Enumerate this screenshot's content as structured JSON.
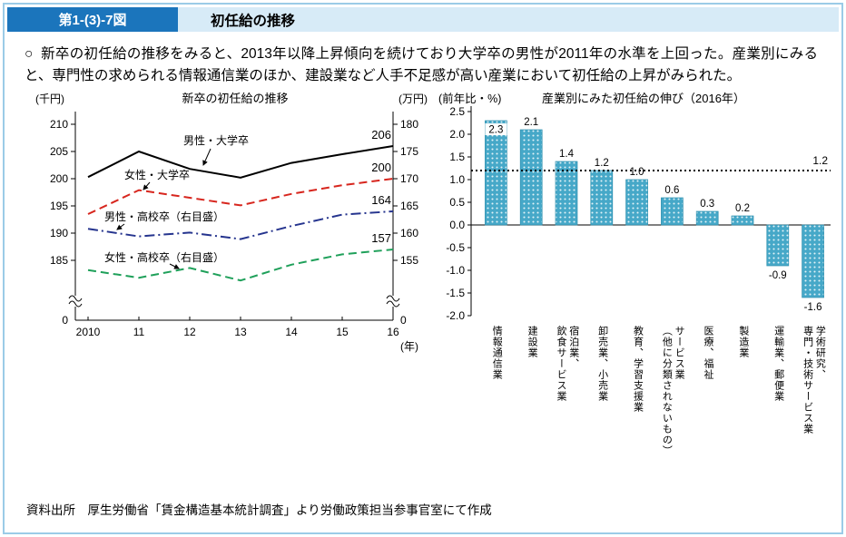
{
  "figure": {
    "number": "第1-(3)-7図",
    "title": "初任給の推移"
  },
  "summary": {
    "bullet": "○",
    "text": "新卒の初任給の推移をみると、2013年以降上昇傾向を続けており大学卒の男性が2011年の水準を上回った。産業別にみると、専門性の求められる情報通信業のほか、建設業など人手不足感が高い産業において初任給の上昇がみられた。"
  },
  "source": "資料出所　厚生労働省「賃金構造基本統計調査」より労働政策担当参事官室にて作成",
  "theme": {
    "header_number_bg": "#1b75bc",
    "header_title_bg": "#d7ebf7",
    "frame_border": "#9bcbe7",
    "bar_fill": "#46a8c8"
  },
  "chart_data": [
    {
      "type": "line",
      "title": "新卒の初任給の推移",
      "left_axis_unit": "(千円)",
      "right_axis_unit": "(万円)",
      "x_axis_unit": "(年)",
      "x_labels": [
        "2010",
        "11",
        "12",
        "13",
        "14",
        "15",
        "16"
      ],
      "left_ticks": [
        210,
        205,
        200,
        195,
        190,
        185
      ],
      "right_ticks": [
        180,
        175,
        170,
        165,
        160,
        155
      ],
      "axis_break": true,
      "zero_label": "0",
      "right_axis_offset": 30,
      "series": [
        {
          "name": "男性・大学卒",
          "axis": "left",
          "color": "#000000",
          "style": "solid",
          "values": [
            200.3,
            205.0,
            201.8,
            200.2,
            202.9,
            204.5,
            206.0
          ],
          "end_label": "206"
        },
        {
          "name": "女性・大学卒",
          "axis": "left",
          "color": "#d7261e",
          "style": "dashed",
          "values": [
            193.5,
            197.9,
            196.5,
            195.1,
            197.2,
            198.8,
            200.0
          ],
          "end_label": "200"
        },
        {
          "name": "男性・高校卒（右目盛）",
          "axis": "right",
          "color": "#25348e",
          "style": "dashdot",
          "values": [
            160.8,
            159.4,
            160.1,
            158.9,
            161.3,
            163.4,
            164.0
          ],
          "end_label": "164"
        },
        {
          "name": "女性・高校卒（右目盛）",
          "axis": "right",
          "color": "#1fa05a",
          "style": "dashed",
          "values": [
            153.2,
            151.8,
            153.6,
            151.3,
            154.2,
            156.1,
            157.0
          ],
          "end_label": "157"
        }
      ]
    },
    {
      "type": "bar",
      "title": "産業別にみた初任給の伸び（2016年）",
      "axis_unit": "(前年比・%)",
      "ylim": [
        -2.0,
        2.5
      ],
      "tick_step": 0.5,
      "reference_line": {
        "value": 1.2,
        "label": "1.2"
      },
      "bar_color": "#46a8c8",
      "categories": [
        "情報通信業",
        "建設業",
        "宿泊業、\n飲食サービス業",
        "卸売業、小売業",
        "教育、学習支援業",
        "サービス業\n（他に分類されないもの）",
        "医療、福祉",
        "製造業",
        "運輸業、郵便業",
        "学術研究、\n専門・技術サービス業"
      ],
      "values": [
        2.3,
        2.1,
        1.4,
        1.2,
        1.0,
        0.6,
        0.3,
        0.2,
        -0.9,
        -1.6
      ]
    }
  ]
}
